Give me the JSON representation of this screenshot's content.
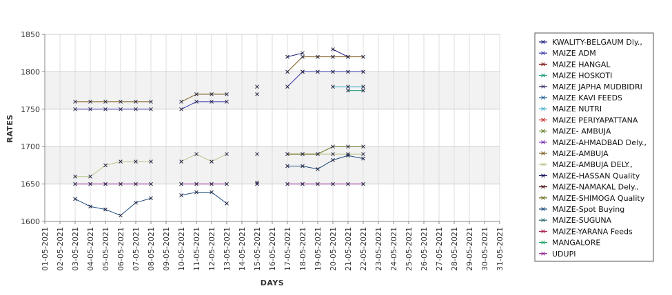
{
  "chart_data": {
    "type": "line",
    "xlabel": "DAYS",
    "ylabel": "RATES",
    "ylim": [
      1600,
      1850
    ],
    "yticks": [
      "1600",
      "1650",
      "1700",
      "1750",
      "1800",
      "1850"
    ],
    "x": [
      "01-05-2021",
      "02-05-2021",
      "03-05-2021",
      "04-05-2021",
      "05-05-2021",
      "06-05-2021",
      "07-05-2021",
      "08-05-2021",
      "09-05-2021",
      "10-05-2021",
      "11-05-2021",
      "12-05-2021",
      "13-05-2021",
      "14-05-2021",
      "15-05-2021",
      "16-05-2021",
      "17-05-2021",
      "18-05-2021",
      "19-05-2021",
      "20-05-2021",
      "21-05-2021",
      "22-05-2021",
      "23-05-2021",
      "24-05-2021",
      "25-05-2021",
      "26-05-2021",
      "27-05-2021",
      "28-05-2021",
      "29-05-2021",
      "30-05-2021",
      "31-05-2021"
    ],
    "grid": true,
    "legend_position": "right",
    "series": [
      {
        "name": "KWALITY-BELGAUM Dly.,",
        "color": "#1a1a7a",
        "values": [
          null,
          null,
          null,
          null,
          null,
          null,
          null,
          null,
          null,
          null,
          null,
          null,
          null,
          null,
          null,
          null,
          1820,
          1825,
          null,
          1830,
          1820,
          null,
          null,
          null,
          null,
          null,
          null,
          null,
          null,
          null,
          null
        ]
      },
      {
        "name": "MAIZE ADM",
        "color": "#3333aa",
        "values": [
          null,
          null,
          1750,
          1750,
          1750,
          1750,
          1750,
          1750,
          null,
          1750,
          1760,
          1760,
          1760,
          null,
          1770,
          null,
          1780,
          1800,
          1800,
          1800,
          1800,
          1800,
          null,
          null,
          null,
          null,
          null,
          null,
          null,
          null,
          null
        ]
      },
      {
        "name": "MAIZE HANGAL",
        "color": "#7a1a1a",
        "values": [
          null,
          null,
          null,
          null,
          null,
          null,
          null,
          null,
          null,
          null,
          null,
          null,
          null,
          null,
          null,
          null,
          null,
          null,
          null,
          null,
          null,
          null,
          null,
          null,
          null,
          null,
          null,
          null,
          null,
          null,
          null
        ]
      },
      {
        "name": "MAIZE HOSKOTI",
        "color": "#1a9a7a",
        "values": [
          null,
          null,
          null,
          null,
          null,
          null,
          null,
          null,
          null,
          null,
          null,
          null,
          null,
          null,
          null,
          null,
          null,
          null,
          null,
          null,
          1775,
          1775,
          null,
          null,
          null,
          null,
          null,
          null,
          null,
          null,
          null
        ]
      },
      {
        "name": "MAIZE JAPHA MUDBIDRI",
        "color": "#333366",
        "values": [
          null,
          null,
          null,
          null,
          null,
          null,
          null,
          null,
          null,
          null,
          null,
          null,
          null,
          null,
          null,
          null,
          null,
          null,
          null,
          null,
          null,
          null,
          null,
          null,
          null,
          null,
          null,
          null,
          null,
          null,
          null
        ]
      },
      {
        "name": "MAIZE KAVI FEEDS",
        "color": "#1a5a9a",
        "values": [
          null,
          null,
          null,
          null,
          null,
          null,
          null,
          null,
          null,
          null,
          null,
          null,
          null,
          null,
          null,
          null,
          null,
          null,
          null,
          null,
          null,
          null,
          null,
          null,
          null,
          null,
          null,
          null,
          null,
          null,
          null
        ]
      },
      {
        "name": "MAIZE NUTRI",
        "color": "#33aacc",
        "values": [
          null,
          null,
          null,
          null,
          null,
          null,
          null,
          null,
          null,
          null,
          null,
          null,
          null,
          null,
          null,
          null,
          null,
          1800,
          null,
          1780,
          1780,
          1780,
          null,
          null,
          null,
          null,
          null,
          null,
          null,
          null,
          null
        ]
      },
      {
        "name": "MAIZE PERIYAPATTANA",
        "color": "#cc2222",
        "values": [
          null,
          null,
          null,
          null,
          null,
          null,
          null,
          null,
          null,
          null,
          null,
          null,
          null,
          null,
          null,
          null,
          null,
          null,
          null,
          null,
          null,
          null,
          null,
          null,
          null,
          null,
          null,
          null,
          null,
          null,
          null
        ]
      },
      {
        "name": "MAIZE- AMBUJA",
        "color": "#5a7a1a",
        "values": [
          null,
          null,
          null,
          null,
          null,
          null,
          null,
          null,
          null,
          null,
          null,
          null,
          null,
          null,
          null,
          null,
          null,
          null,
          null,
          null,
          null,
          null,
          null,
          null,
          null,
          null,
          null,
          null,
          null,
          null,
          null
        ]
      },
      {
        "name": "MAIZE-AHMADBAD Dely.,",
        "color": "#6a1aaa",
        "values": [
          null,
          null,
          null,
          null,
          null,
          null,
          null,
          null,
          null,
          null,
          null,
          null,
          null,
          null,
          null,
          null,
          null,
          null,
          null,
          null,
          null,
          null,
          null,
          null,
          null,
          null,
          null,
          null,
          null,
          null,
          null
        ]
      },
      {
        "name": "MAIZE-AMBUJA",
        "color": "#7a5a1a",
        "values": [
          null,
          null,
          1760,
          1760,
          1760,
          1760,
          1760,
          1760,
          null,
          1760,
          1770,
          1770,
          1770,
          null,
          1780,
          null,
          1800,
          1820,
          1820,
          1820,
          1820,
          1820,
          null,
          null,
          null,
          null,
          null,
          null,
          null,
          null,
          null
        ]
      },
      {
        "name": "MAIZE-AMBUJA DELY.,",
        "color": "#b8c488",
        "values": [
          null,
          null,
          1660,
          1660,
          1675,
          1680,
          1680,
          1680,
          null,
          1680,
          1690,
          1680,
          1690,
          null,
          1690,
          null,
          1690,
          1690,
          1690,
          1690,
          1690,
          1690,
          null,
          null,
          null,
          null,
          null,
          null,
          null,
          null,
          null
        ]
      },
      {
        "name": "MAIZE-HASSAN Quality",
        "color": "#11115a",
        "values": [
          null,
          null,
          null,
          null,
          null,
          null,
          null,
          null,
          null,
          null,
          null,
          null,
          null,
          null,
          null,
          null,
          null,
          null,
          null,
          null,
          null,
          null,
          null,
          null,
          null,
          null,
          null,
          null,
          null,
          null,
          null
        ]
      },
      {
        "name": "MAIZE-NAMAKAL Dely.,",
        "color": "#4a1a1a",
        "values": [
          null,
          null,
          null,
          null,
          null,
          null,
          null,
          null,
          null,
          null,
          null,
          null,
          null,
          null,
          null,
          null,
          null,
          null,
          null,
          null,
          null,
          null,
          null,
          null,
          null,
          null,
          null,
          null,
          null,
          null,
          null
        ]
      },
      {
        "name": "MAIZE-SHIMOGA Quality",
        "color": "#6a6a1a",
        "values": [
          null,
          null,
          null,
          null,
          null,
          null,
          null,
          null,
          null,
          null,
          null,
          null,
          null,
          null,
          null,
          null,
          1690,
          1690,
          1690,
          1700,
          1700,
          1700,
          null,
          null,
          null,
          null,
          null,
          null,
          null,
          null,
          null
        ]
      },
      {
        "name": "MAIZE-Spot Buying",
        "color": "#1a4a7a",
        "values": [
          null,
          null,
          1630,
          1620,
          1616,
          1608,
          1625,
          1631,
          null,
          1635,
          1639,
          1639,
          1624,
          null,
          1652,
          null,
          1674,
          1674,
          1670,
          1682,
          1688,
          1684,
          null,
          null,
          null,
          null,
          null,
          null,
          null,
          null,
          null
        ]
      },
      {
        "name": "MAIZE-SUGUNA",
        "color": "#2a6a6a",
        "values": [
          null,
          null,
          null,
          null,
          null,
          null,
          null,
          null,
          null,
          null,
          null,
          null,
          null,
          null,
          null,
          null,
          null,
          null,
          null,
          null,
          null,
          null,
          null,
          null,
          null,
          null,
          null,
          null,
          null,
          null,
          null
        ]
      },
      {
        "name": "MAIZE-YARANA Feeds",
        "color": "#aa2255",
        "values": [
          null,
          null,
          null,
          null,
          null,
          null,
          null,
          null,
          null,
          null,
          null,
          null,
          null,
          null,
          null,
          null,
          null,
          null,
          null,
          null,
          null,
          null,
          null,
          null,
          null,
          null,
          null,
          null,
          null,
          null,
          null
        ]
      },
      {
        "name": "MANGALORE",
        "color": "#22aa66",
        "values": [
          null,
          null,
          null,
          null,
          null,
          null,
          null,
          null,
          null,
          null,
          null,
          null,
          null,
          null,
          null,
          null,
          null,
          null,
          null,
          null,
          null,
          null,
          null,
          null,
          null,
          null,
          null,
          null,
          null,
          null,
          null
        ]
      },
      {
        "name": "UDUPI",
        "color": "#8a1a8a",
        "values": [
          null,
          null,
          1650,
          1650,
          1650,
          1650,
          1650,
          1650,
          null,
          1650,
          1650,
          1650,
          1650,
          null,
          1650,
          null,
          1650,
          1650,
          1650,
          1650,
          1650,
          1650,
          null,
          null,
          null,
          null,
          null,
          null,
          null,
          null,
          null
        ]
      }
    ]
  }
}
